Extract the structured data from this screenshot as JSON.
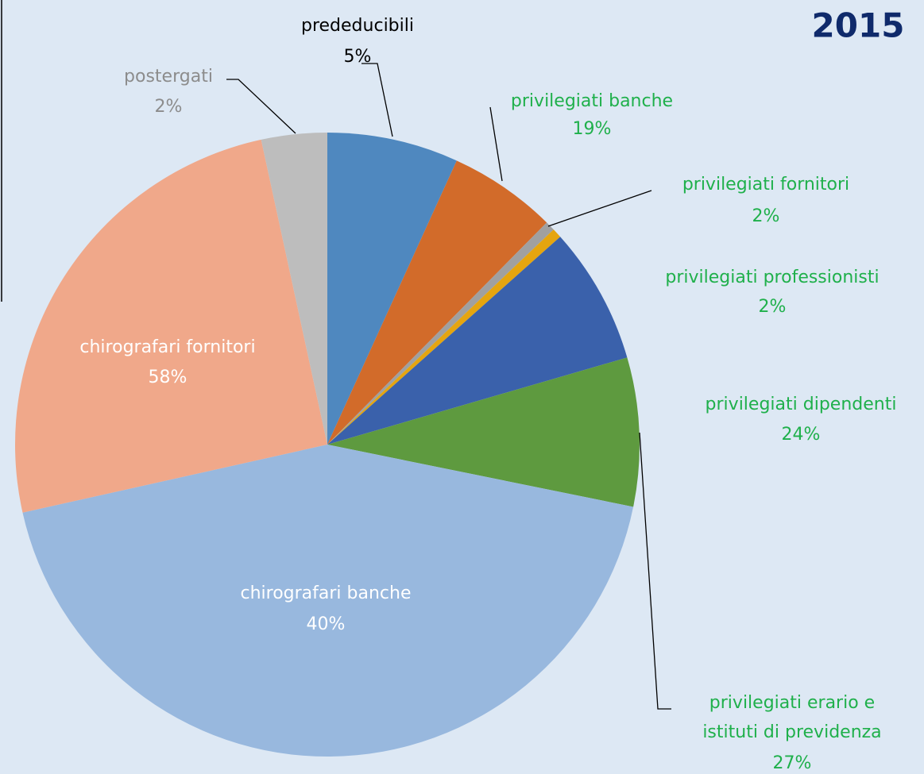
{
  "chart_data": {
    "type": "pie",
    "title": "2015",
    "categories": [
      "prededucibili",
      "privilegiati banche",
      "privilegiati fornitori",
      "privilegiati professionisti",
      "privilegiati dipendenti",
      "privilegiati erario e istituti di previdenza",
      "chirografari banche",
      "chirografari fornitori",
      "postergati"
    ],
    "values": [
      6.8,
      5.6,
      0.5,
      0.5,
      7.1,
      7.7,
      43.3,
      25.1,
      3.4
    ],
    "percent_labels": [
      "5%",
      "19%",
      "2%",
      "2%",
      "24%",
      "27%",
      "40%",
      "58%",
      "2%"
    ],
    "colors": [
      "#4f88bf",
      "#d26b2a",
      "#a0a0a0",
      "#e5a50f",
      "#3a61ab",
      "#5e9a3f",
      "#98b8de",
      "#f0a88a",
      "#bdbdbd"
    ],
    "label_colors": [
      "#000000",
      "#1fb04b",
      "#1fb04b",
      "#1fb04b",
      "#1fb04b",
      "#1fb04b",
      "#ffffff",
      "#ffffff",
      "#8c8c8c"
    ]
  }
}
